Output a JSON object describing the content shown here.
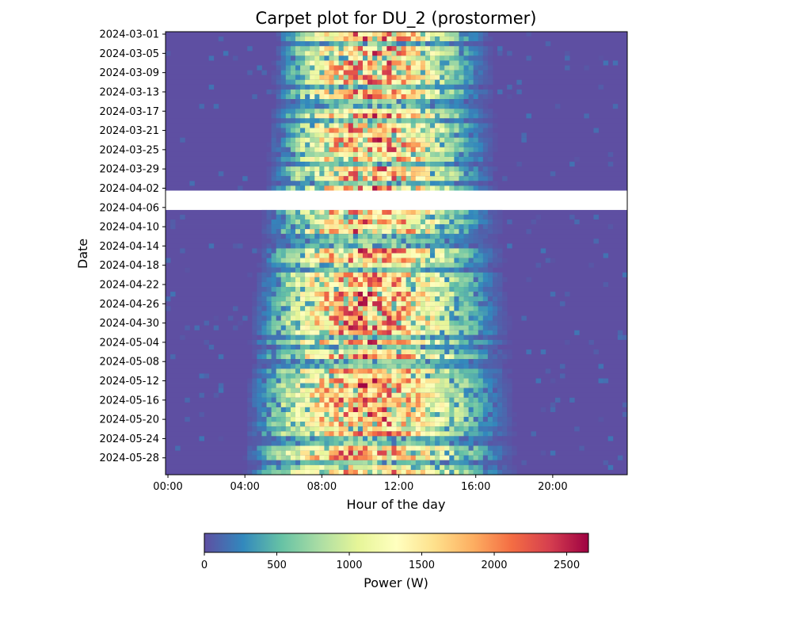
{
  "chart_data": {
    "type": "heatmap",
    "title": "Carpet plot for DU_2 (prostormer)",
    "xlabel": "Hour of the day",
    "ylabel": "Date",
    "x_ticks": [
      "00:00",
      "04:00",
      "08:00",
      "12:00",
      "16:00",
      "20:00"
    ],
    "x_tick_hours": [
      0,
      4,
      8,
      12,
      16,
      20
    ],
    "x_range_hours": [
      0,
      24
    ],
    "interval_minutes": 15,
    "y_ticks": [
      "2024-03-01",
      "2024-03-05",
      "2024-03-09",
      "2024-03-13",
      "2024-03-17",
      "2024-03-21",
      "2024-03-25",
      "2024-03-29",
      "2024-04-02",
      "2024-04-06",
      "2024-04-10",
      "2024-04-14",
      "2024-04-18",
      "2024-04-22",
      "2024-04-26",
      "2024-04-30",
      "2024-05-04",
      "2024-05-08",
      "2024-05-12",
      "2024-05-16",
      "2024-05-20",
      "2024-05-24",
      "2024-05-28"
    ],
    "date_range": [
      "2024-03-01",
      "2024-05-31"
    ],
    "missing_dates": [
      "2024-04-03",
      "2024-04-04",
      "2024-04-05",
      "2024-04-06"
    ],
    "daylight_window_hours": [
      {
        "date": "2024-03-01",
        "start": 5.6,
        "end": 17.2
      },
      {
        "date": "2024-04-02",
        "start": 5.1,
        "end": 17.6
      },
      {
        "date": "2024-05-01",
        "start": 4.3,
        "end": 18.2
      },
      {
        "date": "2024-05-31",
        "start": 3.9,
        "end": 18.6
      }
    ],
    "peak_power_w": 2300,
    "colormap": "Spectral_r",
    "colormap_stops": [
      "#5e4fa2",
      "#3288bd",
      "#66c2a5",
      "#abdda4",
      "#e6f598",
      "#ffffbf",
      "#fee08b",
      "#fdae61",
      "#f46d43",
      "#d53e4f",
      "#9e0142"
    ],
    "colorbar": {
      "label": "Power (W)",
      "range": [
        0,
        2650
      ],
      "ticks": [
        0,
        500,
        1000,
        1500,
        2000,
        2500
      ]
    },
    "grid": false
  }
}
